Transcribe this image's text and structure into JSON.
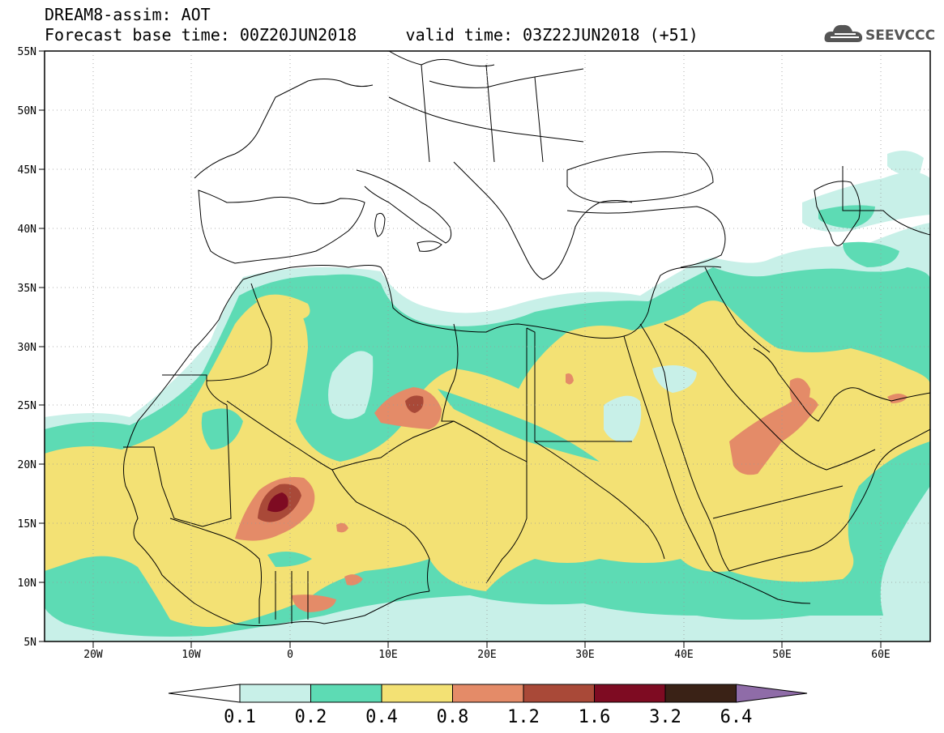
{
  "header": {
    "title": "DREAM8-assim: AOT",
    "base_label": "Forecast base time:",
    "base_time": "00Z20JUN2018",
    "valid_label": "valid time:",
    "valid_time": "03Z22JUN2018",
    "lead": "(+51)"
  },
  "logo": {
    "text": "SEEVCCC",
    "icon": "cloud-icon"
  },
  "map": {
    "lon_labels": [
      "20W",
      "10W",
      "0",
      "10E",
      "20E",
      "30E",
      "40E",
      "50E",
      "60E"
    ],
    "lat_labels": [
      "55N",
      "50N",
      "45N",
      "40N",
      "35N",
      "30N",
      "25N",
      "20N",
      "15N",
      "10N",
      "5N"
    ],
    "lon_range": [
      -25,
      65
    ],
    "lat_range": [
      5,
      55
    ],
    "field": "AOT"
  },
  "colorbar": {
    "levels": [
      "0.1",
      "0.2",
      "0.4",
      "0.8",
      "1.2",
      "1.6",
      "3.2",
      "6.4"
    ],
    "colors": [
      "#c8f0e8",
      "#5ddbb4",
      "#f3e174",
      "#e48b68",
      "#a94938",
      "#7e0b22",
      "#3a2216"
    ],
    "under_color": "#ffffff",
    "over_color": "#8f6ca8"
  }
}
